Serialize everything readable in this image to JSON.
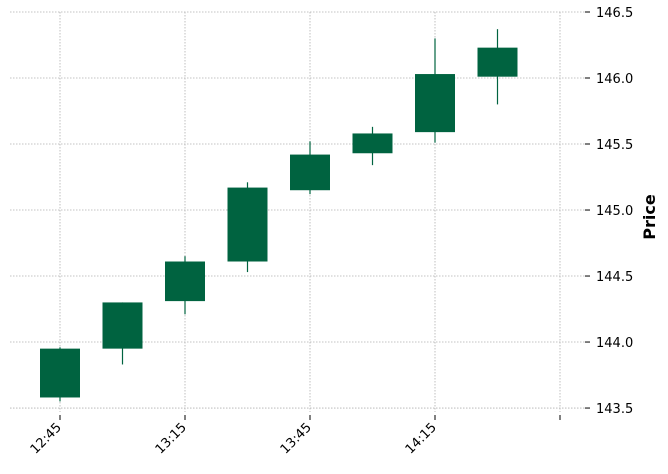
{
  "chart_data": {
    "type": "candlestick",
    "ylabel": "Price",
    "ylim": [
      143.47,
      146.5
    ],
    "yticks": [
      143.5,
      144.0,
      144.5,
      145.0,
      145.5,
      146.0,
      146.5
    ],
    "ytick_labels": [
      "143.5",
      "144.0",
      "144.5",
      "145.0",
      "145.5",
      "146.0",
      "146.5"
    ],
    "xticks": [
      {
        "index": 0,
        "label": "12:45"
      },
      {
        "index": 2,
        "label": "13:15"
      },
      {
        "index": 4,
        "label": "13:45"
      },
      {
        "index": 6,
        "label": "14:15"
      },
      {
        "index": 8,
        "label": ""
      }
    ],
    "xlim": [
      -0.8,
      8.4
    ],
    "grid": true,
    "candle_color": "#006340",
    "candles": [
      {
        "open": 143.58,
        "high": 143.96,
        "low": 143.55,
        "close": 143.95
      },
      {
        "open": 143.95,
        "high": 144.3,
        "low": 143.83,
        "close": 144.3
      },
      {
        "open": 144.31,
        "high": 144.65,
        "low": 144.21,
        "close": 144.61
      },
      {
        "open": 144.61,
        "high": 145.21,
        "low": 144.53,
        "close": 145.17
      },
      {
        "open": 145.15,
        "high": 145.52,
        "low": 145.12,
        "close": 145.42
      },
      {
        "open": 145.43,
        "high": 145.63,
        "low": 145.34,
        "close": 145.58
      },
      {
        "open": 145.59,
        "high": 146.3,
        "low": 145.51,
        "close": 146.03
      },
      {
        "open": 146.01,
        "high": 146.37,
        "low": 145.8,
        "close": 146.23
      }
    ]
  }
}
